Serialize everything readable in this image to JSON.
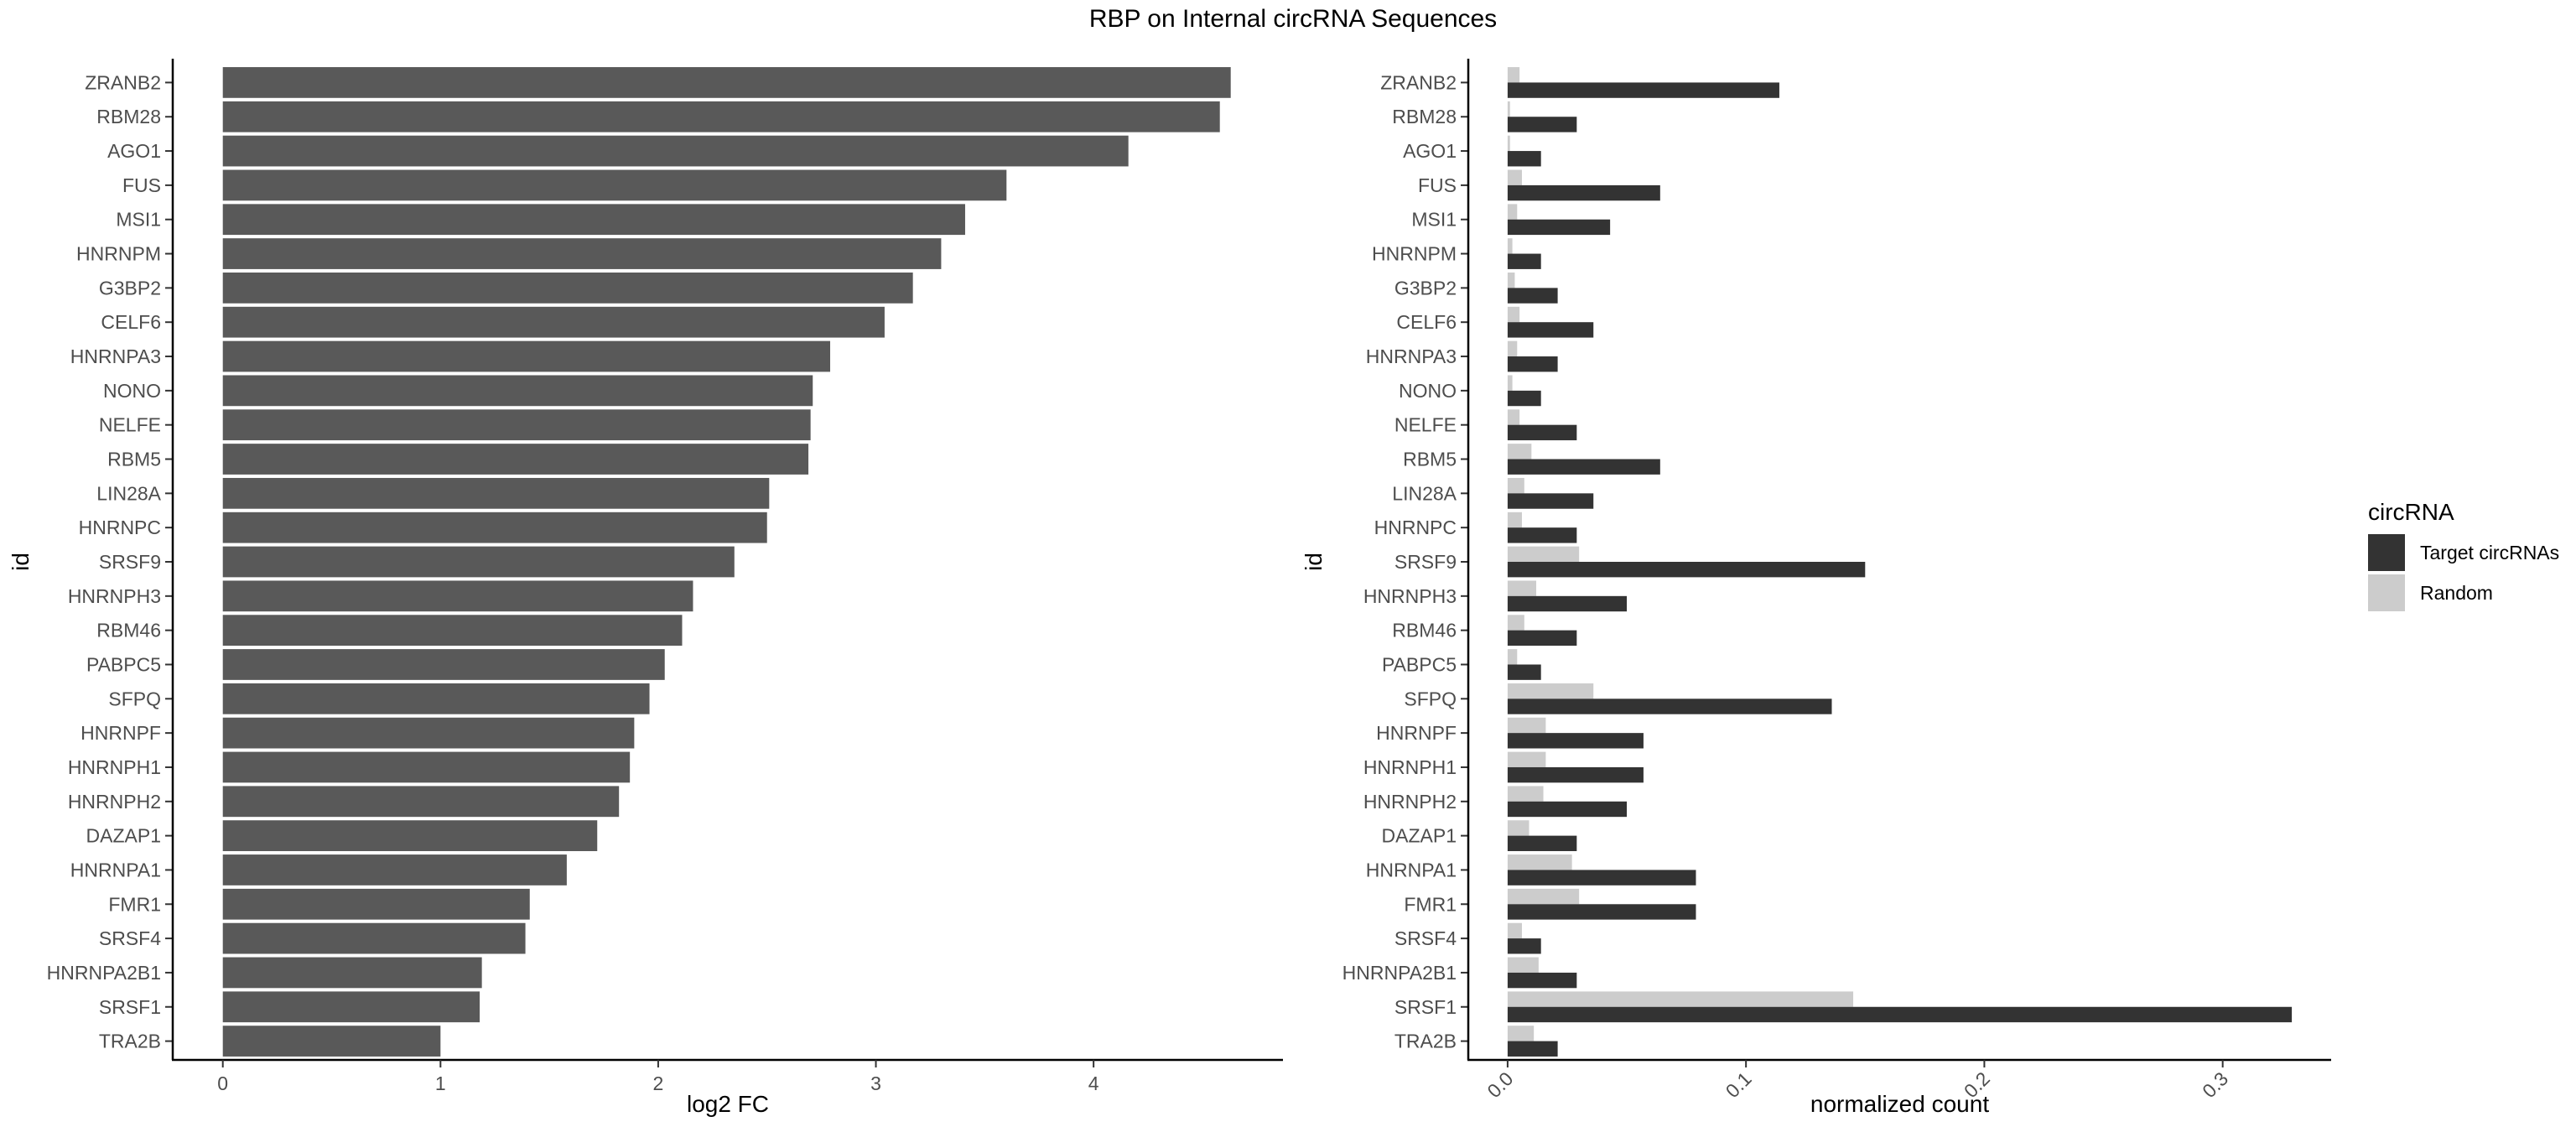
{
  "title": "RBP on Internal circRNA Sequences",
  "chart_data": [
    {
      "type": "bar",
      "orientation": "horizontal",
      "categories": [
        "ZRANB2",
        "RBM28",
        "AGO1",
        "FUS",
        "MSI1",
        "HNRNPM",
        "G3BP2",
        "CELF6",
        "HNRNPA3",
        "NONO",
        "NELFE",
        "RBM5",
        "LIN28A",
        "HNRNPC",
        "SRSF9",
        "HNRNPH3",
        "RBM46",
        "PABPC5",
        "SFPQ",
        "HNRNPF",
        "HNRNPH1",
        "HNRNPH2",
        "DAZAP1",
        "HNRNPA1",
        "FMR1",
        "SRSF4",
        "HNRNPA2B1",
        "SRSF1",
        "TRA2B"
      ],
      "values": [
        4.63,
        4.58,
        4.16,
        3.6,
        3.41,
        3.3,
        3.17,
        3.04,
        2.79,
        2.71,
        2.7,
        2.69,
        2.51,
        2.5,
        2.35,
        2.16,
        2.11,
        2.03,
        1.96,
        1.89,
        1.87,
        1.82,
        1.72,
        1.58,
        1.41,
        1.39,
        1.19,
        1.18,
        1.0
      ],
      "xlabel": "log2 FC",
      "ylabel": "id",
      "xlim": [
        -0.23,
        4.87
      ],
      "xticks": [
        0,
        1,
        2,
        3,
        4
      ],
      "xtick_labels": [
        "0",
        "1",
        "2",
        "3",
        "4"
      ],
      "bar_color": "#595959"
    },
    {
      "type": "bar",
      "orientation": "horizontal",
      "grouped": true,
      "categories": [
        "ZRANB2",
        "RBM28",
        "AGO1",
        "FUS",
        "MSI1",
        "HNRNPM",
        "G3BP2",
        "CELF6",
        "HNRNPA3",
        "NONO",
        "NELFE",
        "RBM5",
        "LIN28A",
        "HNRNPC",
        "SRSF9",
        "HNRNPH3",
        "RBM46",
        "PABPC5",
        "SFPQ",
        "HNRNPF",
        "HNRNPH1",
        "HNRNPH2",
        "DAZAP1",
        "HNRNPA1",
        "FMR1",
        "SRSF4",
        "HNRNPA2B1",
        "SRSF1",
        "TRA2B"
      ],
      "series": [
        {
          "name": "Target circRNAs",
          "color": "#333333",
          "values": [
            0.114,
            0.029,
            0.014,
            0.064,
            0.043,
            0.014,
            0.021,
            0.036,
            0.021,
            0.014,
            0.029,
            0.064,
            0.036,
            0.029,
            0.15,
            0.05,
            0.029,
            0.014,
            0.136,
            0.057,
            0.057,
            0.05,
            0.029,
            0.079,
            0.079,
            0.014,
            0.029,
            0.329,
            0.021
          ]
        },
        {
          "name": "Random",
          "color": "#cccccc",
          "values": [
            0.005,
            0.001,
            0.001,
            0.006,
            0.004,
            0.002,
            0.003,
            0.005,
            0.004,
            0.002,
            0.005,
            0.01,
            0.007,
            0.006,
            0.03,
            0.012,
            0.007,
            0.004,
            0.036,
            0.016,
            0.016,
            0.015,
            0.009,
            0.027,
            0.03,
            0.006,
            0.013,
            0.145,
            0.011
          ]
        }
      ],
      "xlabel": "normalized count",
      "ylabel": "id",
      "xlim": [
        -0.0165,
        0.3455
      ],
      "xticks": [
        0,
        0.1,
        0.2,
        0.3
      ],
      "xtick_labels": [
        "0.0",
        "0.1",
        "0.2",
        "0.3"
      ],
      "legend": {
        "title": "circRNA",
        "position": "right"
      }
    }
  ]
}
